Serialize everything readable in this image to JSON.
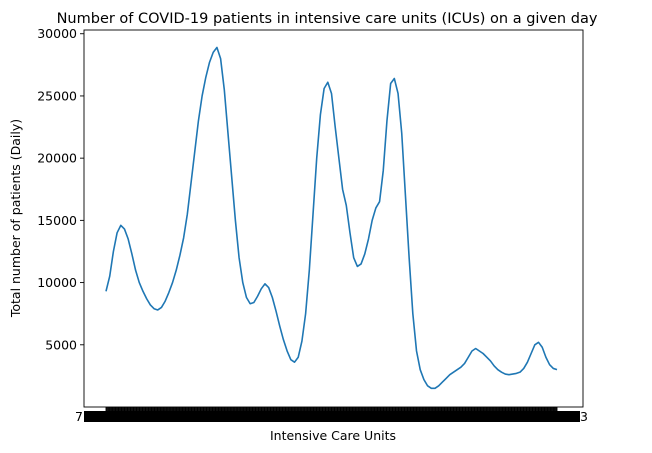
{
  "chart_data": {
    "type": "line",
    "title": "Number of COVID-19 patients in intensive care units (ICUs) on a given day",
    "xlabel": "Intensive Care Units",
    "ylabel": "Total number of patients (Daily)",
    "x_tick_label_first": "7",
    "x_tick_label_last": "3",
    "x_tick_labels_note": "",
    "ylim": [
      0,
      30300
    ],
    "y_ticks": [
      5000,
      10000,
      15000,
      20000,
      25000,
      30000
    ],
    "y_tick_labels": [
      "5000",
      "10000",
      "15000",
      "20000",
      "25000",
      "30000"
    ],
    "grid": false,
    "legend": "none",
    "line_color": "#1f77b4",
    "series": [
      {
        "values": [
          9300,
          10500,
          12500,
          14000,
          14600,
          14300,
          13500,
          12300,
          11000,
          10000,
          9300,
          8700,
          8200,
          7900,
          7800,
          8000,
          8500,
          9200,
          10000,
          11000,
          12200,
          13600,
          15500,
          18000,
          20500,
          23000,
          25000,
          26500,
          27700,
          28500,
          28900,
          28000,
          25500,
          22000,
          18500,
          15000,
          12000,
          10000,
          8800,
          8300,
          8400,
          8900,
          9500,
          9900,
          9600,
          8800,
          7700,
          6500,
          5400,
          4500,
          3800,
          3600,
          4000,
          5300,
          7500,
          11000,
          15500,
          20000,
          23500,
          25600,
          26100,
          25200,
          22500,
          20000,
          17500,
          16200,
          14000,
          12000,
          11300,
          11500,
          12300,
          13500,
          15000,
          16000,
          16500,
          19000,
          23000,
          26000,
          26400,
          25200,
          22000,
          17000,
          12000,
          7500,
          4500,
          3000,
          2200,
          1700,
          1500,
          1500,
          1700,
          2000,
          2300,
          2600,
          2800,
          3000,
          3200,
          3500,
          4000,
          4500,
          4700,
          4500,
          4300,
          4000,
          3700,
          3300,
          3000,
          2800,
          2650,
          2600,
          2650,
          2700,
          2800,
          3100,
          3600,
          4300,
          5000,
          5200,
          4800,
          4000,
          3400,
          3100,
          3000
        ]
      }
    ]
  }
}
